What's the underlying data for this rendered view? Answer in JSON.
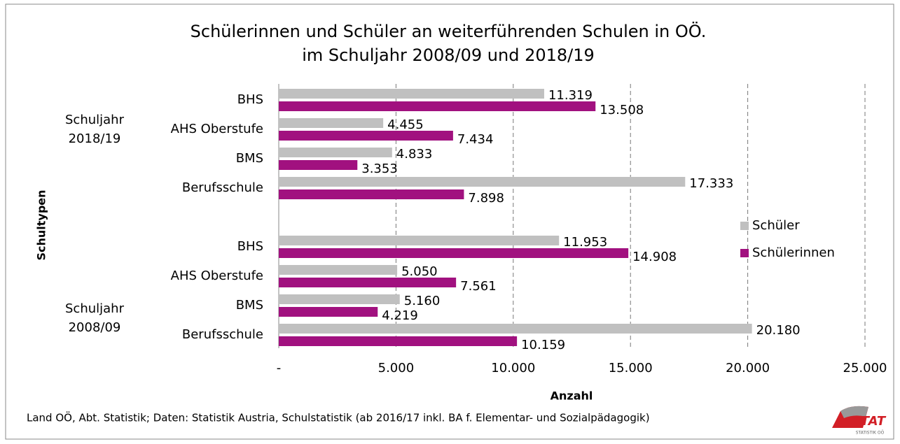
{
  "chart_data": {
    "type": "bar",
    "orientation": "horizontal",
    "title": [
      "Schülerinnen und Schüler an weiterführenden Schulen in OÖ.",
      "im Schuljahr 2008/09 und 2018/19"
    ],
    "groups": [
      {
        "label": "Schuljahr 2018/19",
        "categories": [
          "BHS",
          "AHS Oberstufe",
          "BMS",
          "Berufsschule"
        ]
      },
      {
        "label": "Schuljahr 2008/09",
        "categories": [
          "BHS",
          "AHS Oberstufe",
          "BMS",
          "Berufsschule"
        ]
      }
    ],
    "series": [
      {
        "name": "Schüler",
        "color": "#c0c0c0",
        "values": [
          11319,
          4455,
          4833,
          17333,
          11953,
          5050,
          5160,
          20180
        ],
        "value_labels": [
          "11.319",
          "4.455",
          "4.833",
          "17.333",
          "11.953",
          "5.050",
          "5.160",
          "20.180"
        ]
      },
      {
        "name": "Schülerinnen",
        "color": "#a1117f",
        "values": [
          13508,
          7434,
          3353,
          7898,
          14908,
          7561,
          4219,
          10159
        ],
        "value_labels": [
          "13.508",
          "7.434",
          "3.353",
          "7.898",
          "14.908",
          "7.561",
          "4.219",
          "10.159"
        ]
      }
    ],
    "xlim": [
      0,
      25000
    ],
    "xticks": [
      {
        "value": 0,
        "label": "-"
      },
      {
        "value": 5000,
        "label": "5.000"
      },
      {
        "value": 10000,
        "label": "10.000"
      },
      {
        "value": 15000,
        "label": "15.000"
      },
      {
        "value": 20000,
        "label": "20.000"
      },
      {
        "value": 25000,
        "label": "25.000"
      }
    ],
    "xlabel": "Anzahl",
    "ylabel": "Schultypen",
    "grid": true,
    "legend": "right",
    "source": "Land OÖ, Abt. Statistik; Daten: Statistik Austria, Schulstatistik (ab 2016/17 inkl. BA f. Elementar- und Sozialpädagogik)",
    "logo": {
      "text": "STAT",
      "subtext": "STATISTIK OÖ"
    }
  }
}
